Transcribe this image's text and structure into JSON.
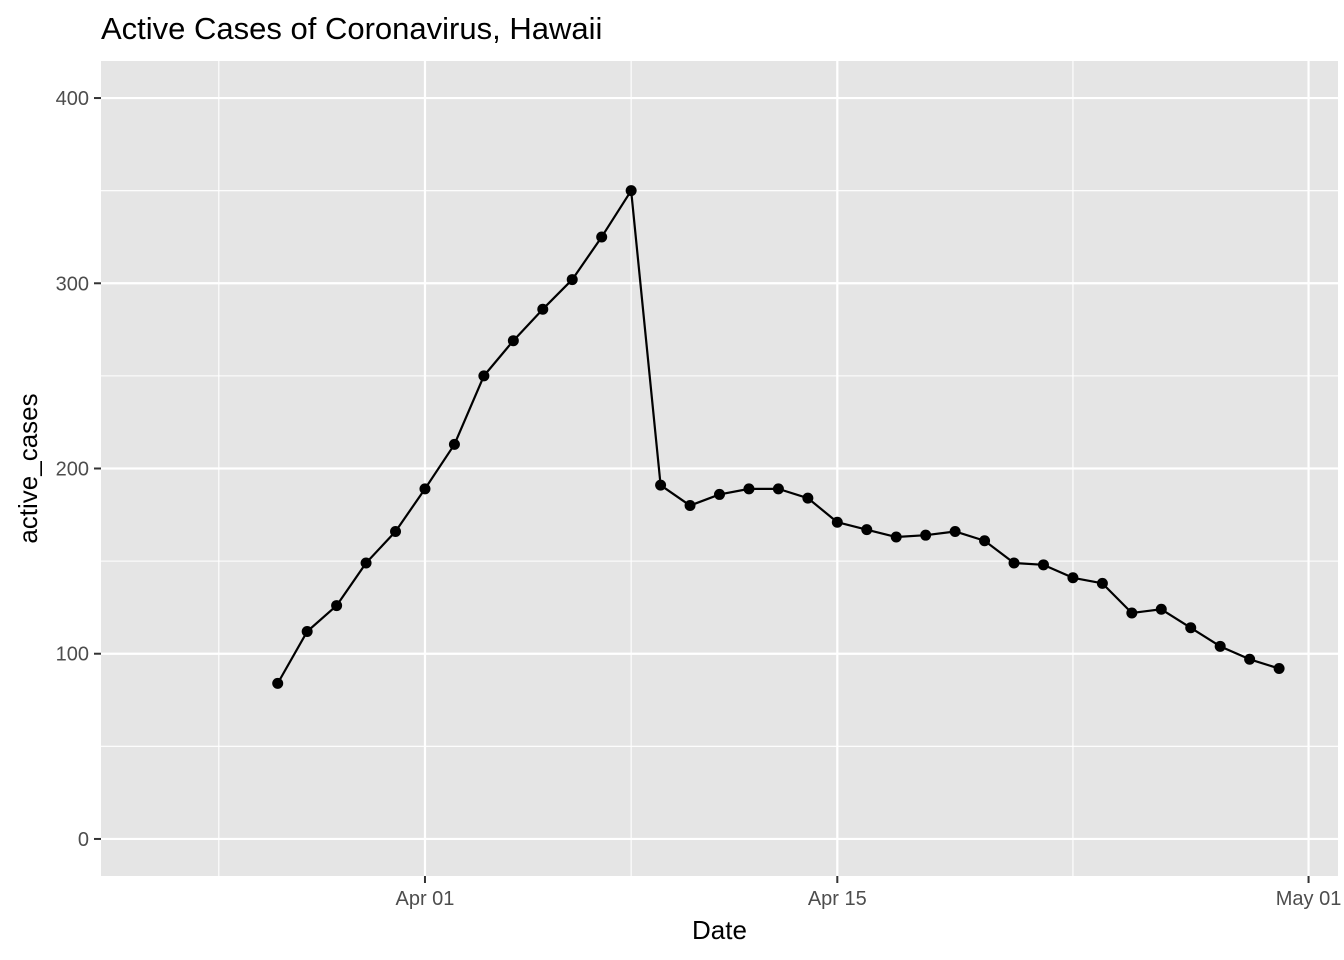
{
  "chart_data": {
    "type": "line",
    "title": "Active Cases of Coronavirus, Hawaii",
    "xlabel": "Date",
    "ylabel": "active_cases",
    "x_type": "date",
    "xlim": [
      "2020-03-21",
      "2020-05-02"
    ],
    "ylim": [
      -20,
      420
    ],
    "x_ticks": [
      {
        "value": "2020-04-01",
        "label": "Apr 01"
      },
      {
        "value": "2020-04-15",
        "label": "Apr 15"
      },
      {
        "value": "2020-05-01",
        "label": "May 01"
      }
    ],
    "x_minor_ticks": [
      "2020-03-25",
      "2020-04-08",
      "2020-04-23"
    ],
    "y_ticks": [
      {
        "value": 0,
        "label": "0"
      },
      {
        "value": 100,
        "label": "100"
      },
      {
        "value": 200,
        "label": "200"
      },
      {
        "value": 300,
        "label": "300"
      },
      {
        "value": 400,
        "label": "400"
      }
    ],
    "y_minor_ticks": [
      50,
      150,
      250,
      350
    ],
    "grid": true,
    "background": "#e5e5e5",
    "grid_color": "#ffffff",
    "line_color": "#000000",
    "point_color": "#000000",
    "x": [
      "2020-03-27",
      "2020-03-28",
      "2020-03-29",
      "2020-03-30",
      "2020-03-31",
      "2020-04-01",
      "2020-04-02",
      "2020-04-03",
      "2020-04-04",
      "2020-04-05",
      "2020-04-06",
      "2020-04-07",
      "2020-04-08",
      "2020-04-09",
      "2020-04-10",
      "2020-04-11",
      "2020-04-12",
      "2020-04-13",
      "2020-04-14",
      "2020-04-15",
      "2020-04-16",
      "2020-04-17",
      "2020-04-18",
      "2020-04-19",
      "2020-04-20",
      "2020-04-21",
      "2020-04-22",
      "2020-04-23",
      "2020-04-24",
      "2020-04-25",
      "2020-04-26",
      "2020-04-27",
      "2020-04-28",
      "2020-04-29",
      "2020-04-30"
    ],
    "y": [
      84,
      112,
      126,
      149,
      166,
      189,
      213,
      250,
      269,
      286,
      302,
      325,
      350,
      191,
      180,
      186,
      189,
      189,
      184,
      171,
      167,
      163,
      164,
      166,
      161,
      149,
      148,
      141,
      138,
      122,
      124,
      114,
      104,
      97,
      92
    ]
  }
}
